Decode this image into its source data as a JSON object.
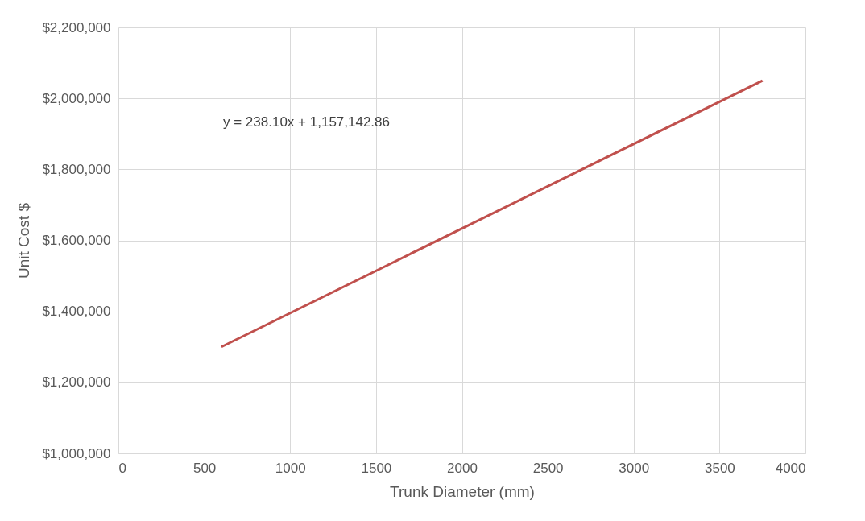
{
  "chart_data": {
    "type": "line",
    "xlabel": "Trunk Diameter (mm)",
    "ylabel": "Unit Cost $",
    "x": [
      600,
      3750
    ],
    "series": [
      {
        "color": "#c0504d",
        "values": [
          1300000,
          2050000
        ]
      }
    ],
    "xlim": [
      0,
      4000
    ],
    "xticks": [
      0,
      500,
      1000,
      1500,
      2000,
      2500,
      3000,
      3500,
      4000
    ],
    "ylim": [
      1000000,
      2200000
    ],
    "yticks": [
      {
        "value": 1000000,
        "label": "$1,000,000"
      },
      {
        "value": 1200000,
        "label": "$1,200,000"
      },
      {
        "value": 1400000,
        "label": "$1,400,000"
      },
      {
        "value": 1600000,
        "label": "$1,600,000"
      },
      {
        "value": 1800000,
        "label": "$1,800,000"
      },
      {
        "value": 2000000,
        "label": "$2,000,000"
      },
      {
        "value": 2200000,
        "label": "$2,200,000"
      }
    ],
    "annotations": [
      "y = 238.10x + 1,157,142.86"
    ],
    "grid": true,
    "marker": "none",
    "line_style": "solid"
  }
}
